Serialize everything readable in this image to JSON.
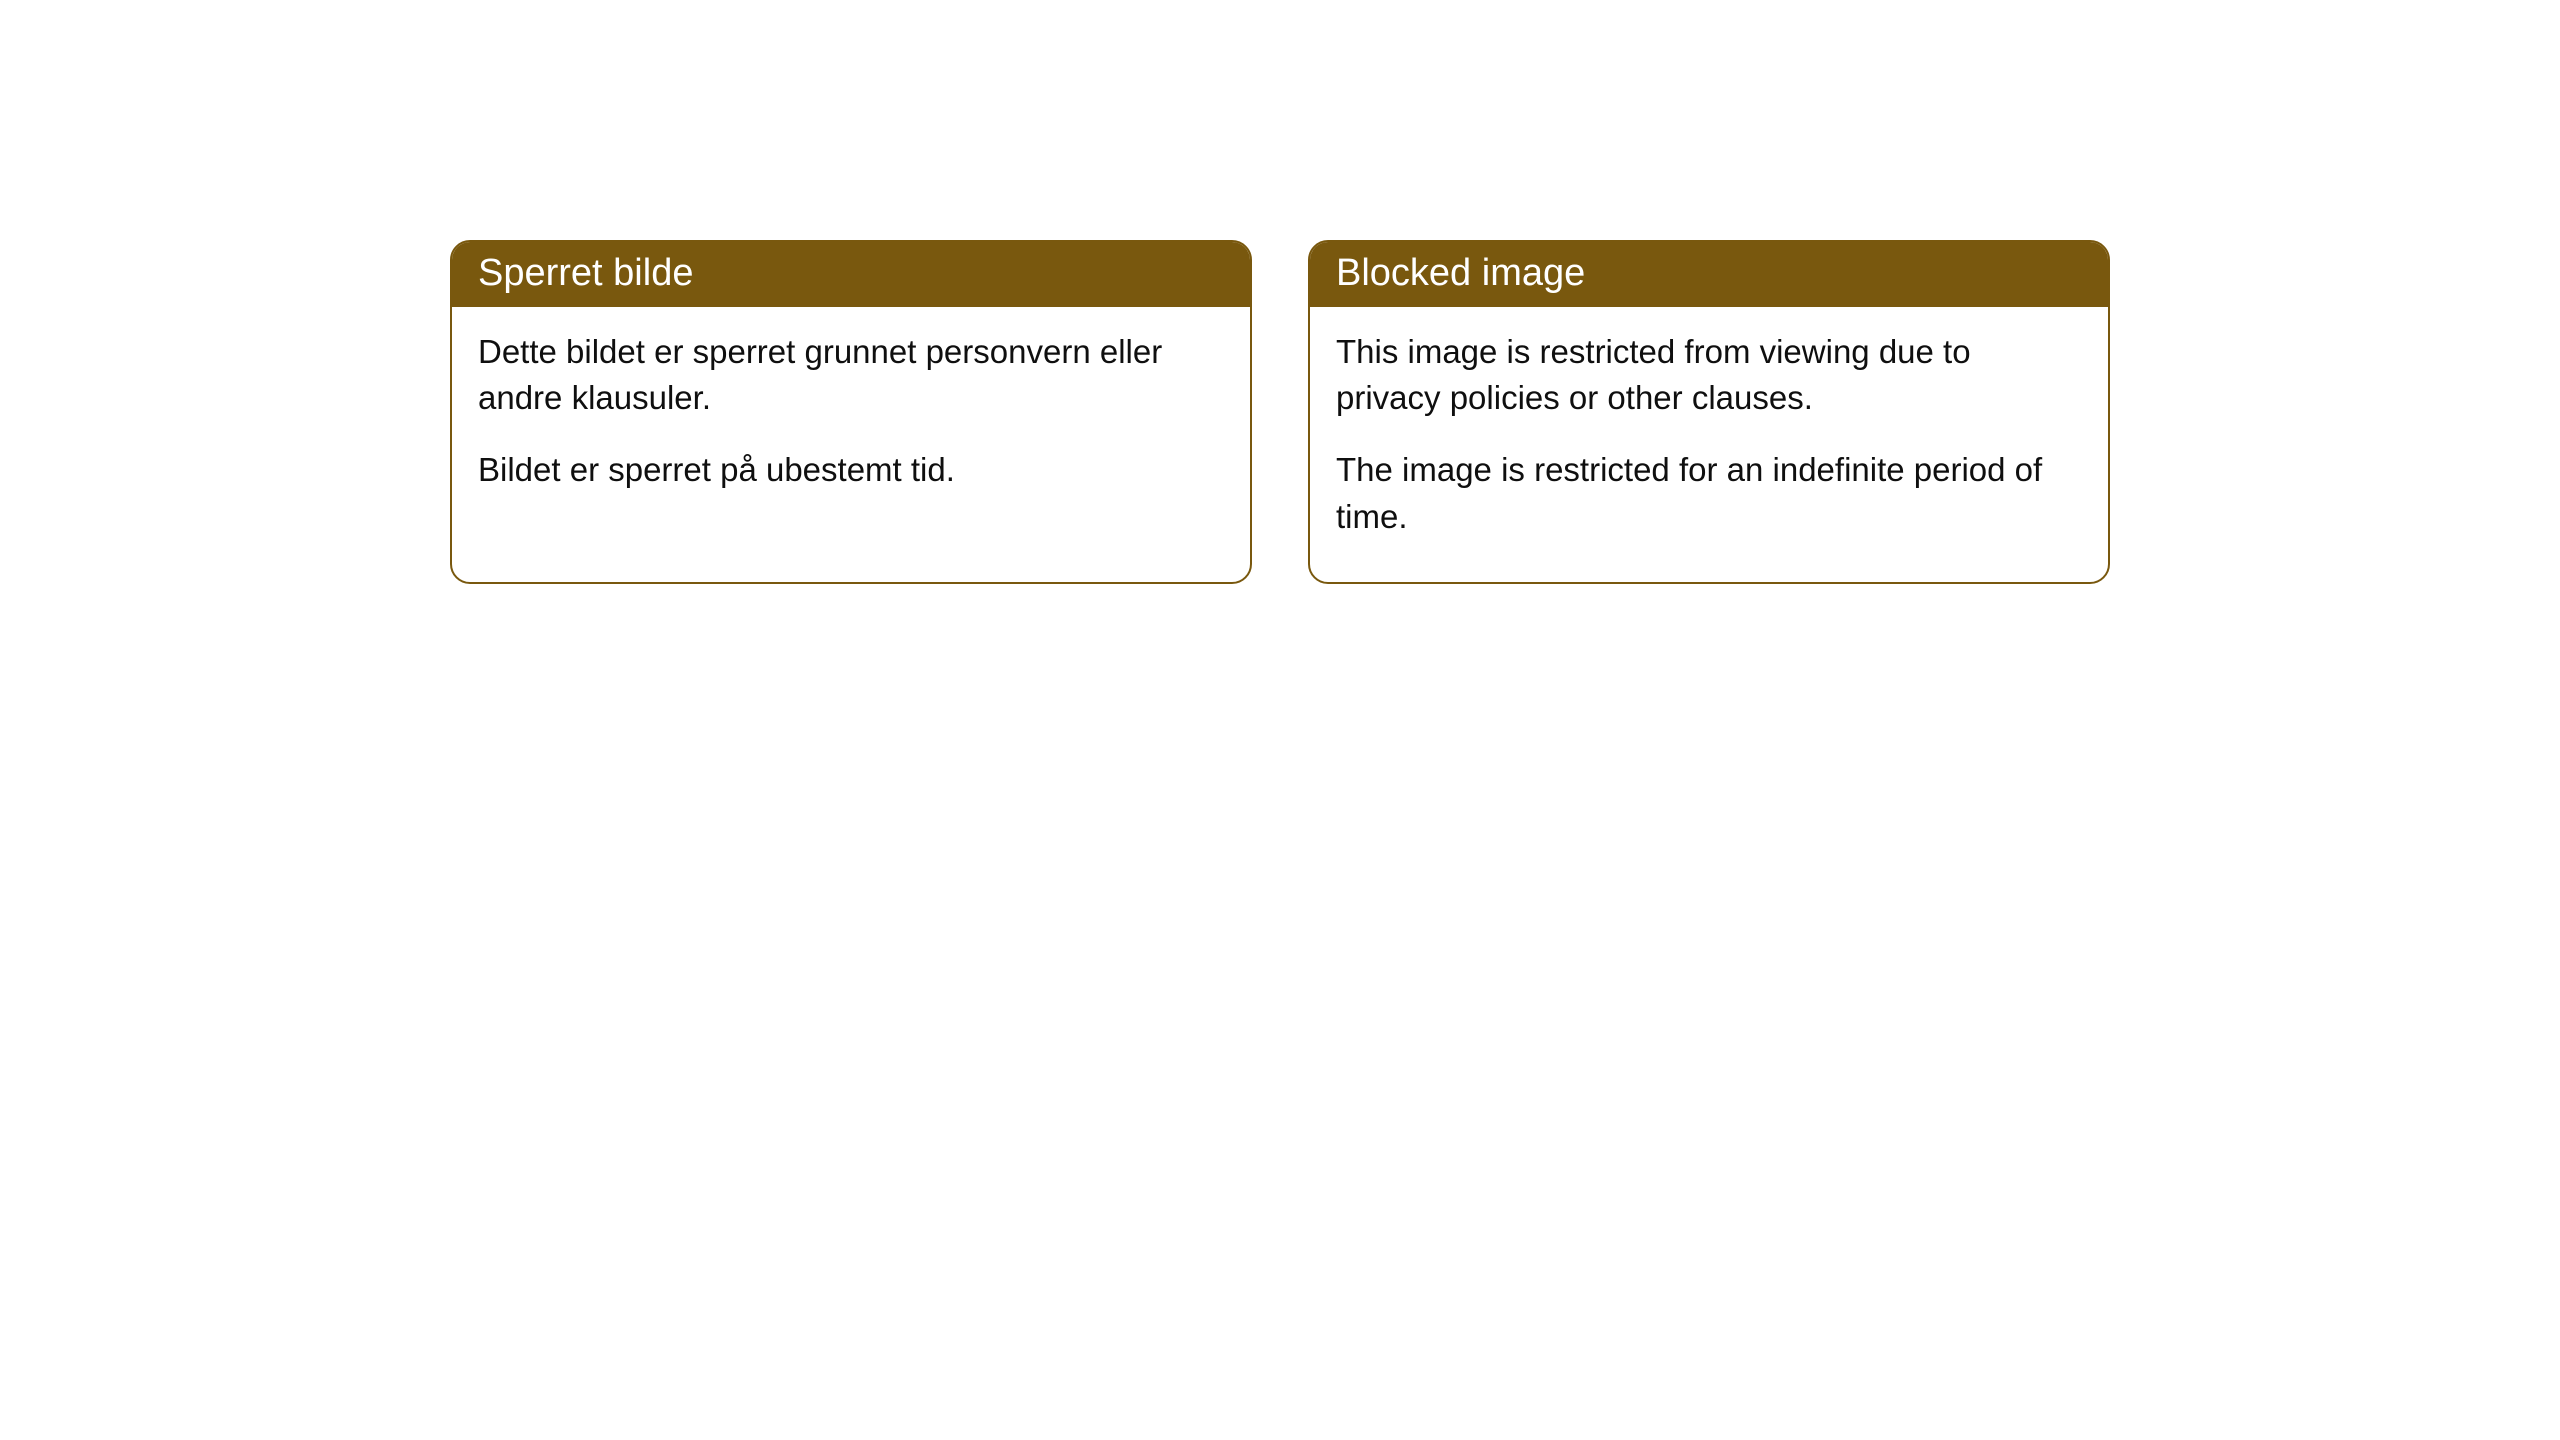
{
  "cards": [
    {
      "title": "Sperret bilde",
      "para1": "Dette bildet er sperret grunnet personvern eller andre klausuler.",
      "para2": "Bildet er sperret på ubestemt tid."
    },
    {
      "title": "Blocked image",
      "para1": "This image is restricted from viewing due to privacy policies or other clauses.",
      "para2": "The image is restricted for an indefinite period of time."
    }
  ],
  "styling": {
    "header_background": "#79580e",
    "header_text_color": "#ffffff",
    "border_color": "#79580e",
    "body_background": "#ffffff",
    "body_text_color": "#0f0f0f",
    "border_radius": "20px",
    "header_fontsize": 38,
    "body_fontsize": 33
  }
}
